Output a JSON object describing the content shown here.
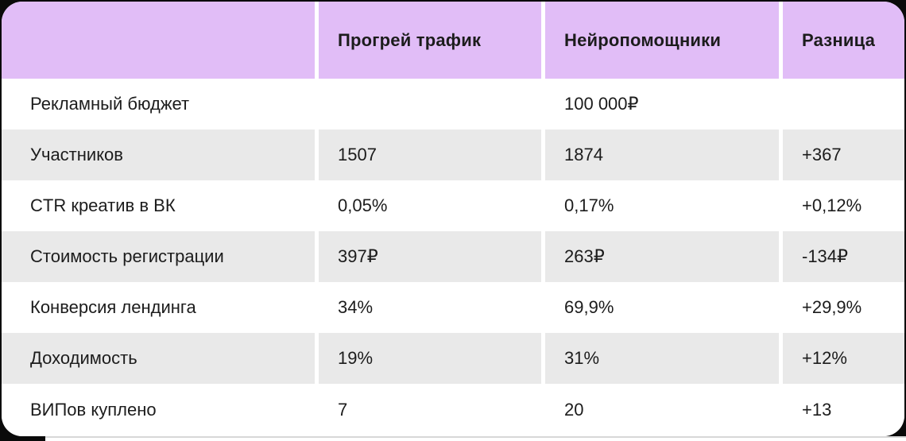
{
  "colors": {
    "page_background": "#0a0a0a",
    "card_background": "#ffffff",
    "header_background": "#e1bdf7",
    "alt_row_background": "#e9e9e9",
    "text": "#1c1c1c",
    "bottom_divider": "#d8d8d8"
  },
  "chart_data": {
    "type": "table",
    "title": "",
    "legend": "none",
    "grid": "alternating-row-shading",
    "columns": [
      "",
      "Прогрей трафик",
      "Нейропомощники",
      "Разница"
    ],
    "rows": [
      [
        "Рекламный бюджет",
        "",
        "100 000₽",
        ""
      ],
      [
        "Участников",
        "1507",
        "1874",
        "+367"
      ],
      [
        "CTR креатив в ВК",
        "0,05%",
        "0,17%",
        "+0,12%"
      ],
      [
        "Стоимость регистрации",
        "397₽",
        "263₽",
        "-134₽"
      ],
      [
        "Конверсия лендинга",
        "34%",
        "69,9%",
        "+29,9%"
      ],
      [
        "Доходимость",
        "19%",
        "31%",
        "+12%"
      ],
      [
        "ВИПов куплено",
        "7",
        "20",
        "+13"
      ]
    ]
  }
}
